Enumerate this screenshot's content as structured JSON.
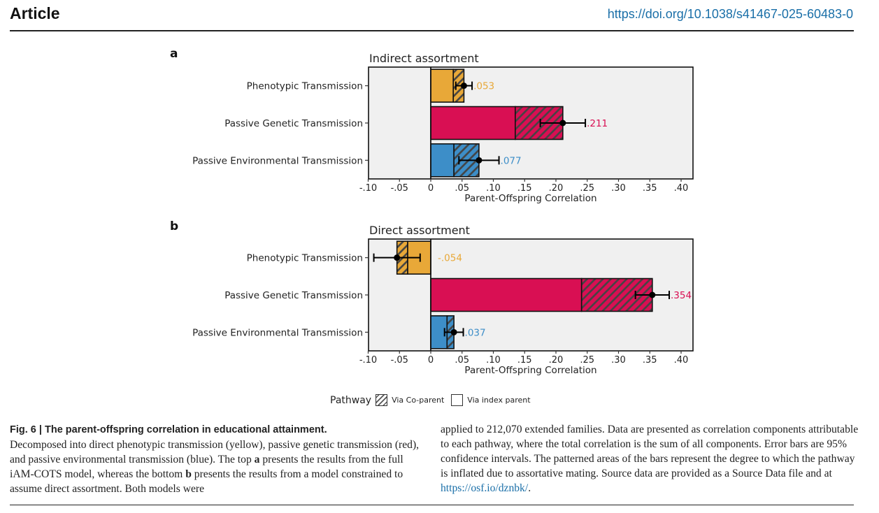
{
  "header": {
    "section": "Article",
    "doi": "https://doi.org/10.1038/s41467-025-60483-0"
  },
  "colors": {
    "phenotypic": "#E8A838",
    "genetic": "#D90F53",
    "environmental": "#3D8EC8",
    "panel_bg": "#F0F0F0",
    "hatch": "#444444"
  },
  "chart_data": [
    {
      "type": "bar",
      "orientation": "horizontal",
      "stacked": true,
      "panel": "a",
      "title": "Indirect assortment",
      "xlabel": "Parent-Offspring Correlation",
      "ylabel": "",
      "xlim": [
        -0.1,
        0.42
      ],
      "xticks": [
        -0.1,
        -0.05,
        0,
        0.05,
        0.1,
        0.15,
        0.2,
        0.25,
        0.3,
        0.35,
        0.4
      ],
      "xtick_labels": [
        "-.10",
        "-.05",
        "0",
        ".05",
        ".10",
        ".15",
        ".20",
        ".25",
        ".30",
        ".35",
        ".40"
      ],
      "categories": [
        "Phenotypic Transmission",
        "Passive Genetic Transmission",
        "Passive Environmental Transmission"
      ],
      "series": [
        {
          "name": "Via index parent",
          "values": [
            0.036,
            0.135,
            0.037
          ]
        },
        {
          "name": "Via Co-parent",
          "values": [
            0.017,
            0.076,
            0.04
          ]
        }
      ],
      "totals": [
        0.053,
        0.211,
        0.077
      ],
      "total_labels": [
        ".053",
        ".211",
        ".077"
      ],
      "ci_low": [
        0.04,
        0.175,
        0.045
      ],
      "ci_high": [
        0.066,
        0.247,
        0.109
      ],
      "grid": false
    },
    {
      "type": "bar",
      "orientation": "horizontal",
      "stacked": true,
      "panel": "b",
      "title": "Direct assortment",
      "xlabel": "Parent-Offspring Correlation",
      "ylabel": "",
      "xlim": [
        -0.1,
        0.42
      ],
      "xticks": [
        -0.1,
        -0.05,
        0,
        0.05,
        0.1,
        0.15,
        0.2,
        0.25,
        0.3,
        0.35,
        0.4
      ],
      "xtick_labels": [
        "-.10",
        "-.05",
        "0",
        ".05",
        ".10",
        ".15",
        ".20",
        ".25",
        ".30",
        ".35",
        ".40"
      ],
      "categories": [
        "Phenotypic Transmission",
        "Passive Genetic Transmission",
        "Passive Environmental Transmission"
      ],
      "series": [
        {
          "name": "Via index parent",
          "values": [
            -0.037,
            0.241,
            0.026
          ]
        },
        {
          "name": "Via Co-parent",
          "values": [
            -0.017,
            0.113,
            0.011
          ]
        }
      ],
      "totals": [
        -0.054,
        0.354,
        0.037
      ],
      "total_labels": [
        "-.054",
        ".354",
        ".037"
      ],
      "ci_low": [
        -0.091,
        0.327,
        0.022
      ],
      "ci_high": [
        -0.017,
        0.381,
        0.052
      ],
      "grid": false
    }
  ],
  "legend": {
    "title": "Pathway",
    "items": [
      {
        "label": "Via Co-parent",
        "pattern": "hatched"
      },
      {
        "label": "Via index parent",
        "pattern": "solid"
      }
    ],
    "position": "bottom"
  },
  "caption": {
    "fig_label": "Fig. 6 | The parent-offspring correlation in educational attainment.",
    "left_text_1": "Decomposed into direct phenotypic transmission (yellow), passive genetic transmission (red), and passive environmental transmission (blue). The top ",
    "a": "a",
    "left_text_2": " presents the results from the full iAM-COTS model, whereas the bottom ",
    "b": "b",
    "left_text_3": " presents the results from a model constrained to assume direct assortment. Both models were",
    "right_text": "applied to 212,070 extended families. Data are presented as correlation components attributable to each pathway, where the total correlation is the sum of all components. Error bars are 95% confidence intervals. The patterned areas of the bars represent the degree to which the pathway is inflated due to assortative mating. Source data are provided as a Source Data file and at ",
    "link": "https://osf.io/dznbk/",
    "end": "."
  }
}
